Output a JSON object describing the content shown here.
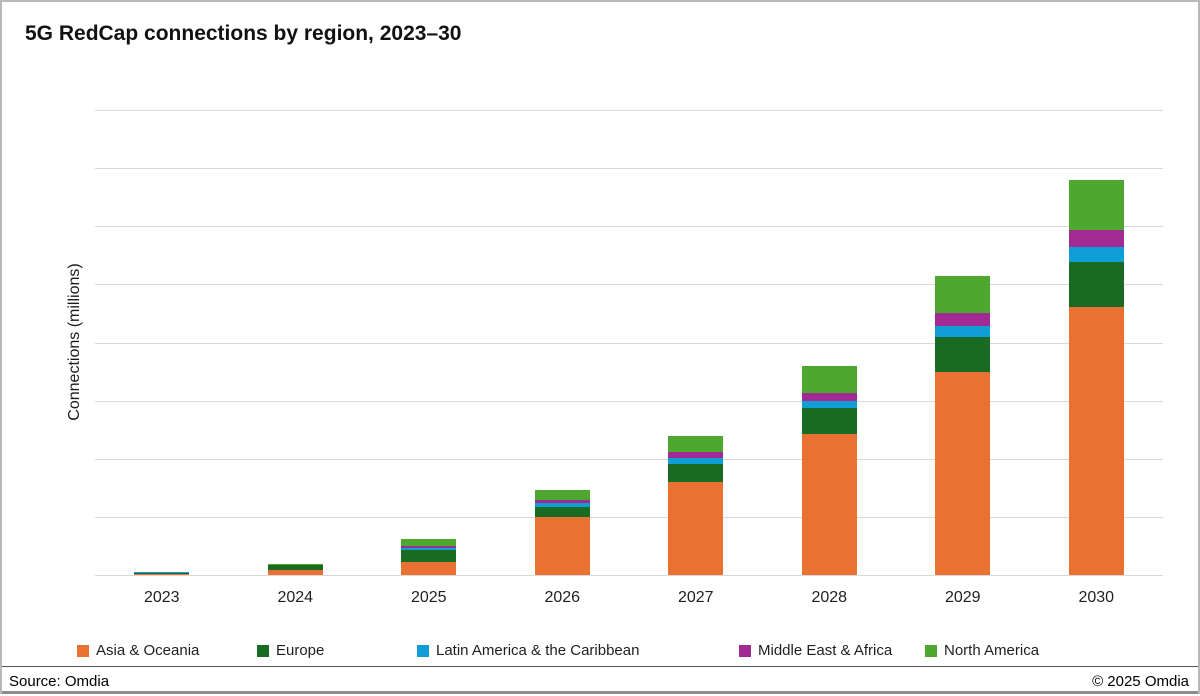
{
  "title": "5G RedCap connections by region, 2023–30",
  "footer": {
    "source": "Source: Omdia",
    "copyright": "© 2025 Omdia"
  },
  "chart_data": {
    "type": "bar",
    "stacked": true,
    "title": "5G RedCap connections by region, 2023–30",
    "xlabel": "",
    "ylabel": "Connections (millions)",
    "categories": [
      "2023",
      "2024",
      "2025",
      "2026",
      "2027",
      "2028",
      "2029",
      "2030"
    ],
    "series": [
      {
        "name": "Asia & Oceania",
        "color": "#E97132",
        "values": [
          0.1,
          0.8,
          2.2,
          10.0,
          16.0,
          24.3,
          34.9,
          46.1
        ]
      },
      {
        "name": "Europe",
        "color": "#196B24",
        "values": [
          0.3,
          0.9,
          2.1,
          1.7,
          3.1,
          4.5,
          6.0,
          7.7
        ]
      },
      {
        "name": "Latin America & the Caribbean",
        "color": "#0F9ED5",
        "values": [
          0.05,
          0.05,
          0.35,
          0.7,
          1.0,
          1.2,
          1.9,
          2.6
        ]
      },
      {
        "name": "Middle East & Africa",
        "color": "#A02B93",
        "values": [
          0.05,
          0.05,
          0.35,
          0.45,
          1.0,
          1.4,
          2.2,
          2.9
        ]
      },
      {
        "name": "North America",
        "color": "#4EA72E",
        "values": [
          0.1,
          0.1,
          1.2,
          1.7,
          2.9,
          4.5,
          6.4,
          8.6
        ]
      }
    ],
    "ylim": [
      0,
      80
    ],
    "y_gridline_interval": 10,
    "y_tick_labels_visible": false,
    "grid": true,
    "legend_position": "bottom"
  }
}
